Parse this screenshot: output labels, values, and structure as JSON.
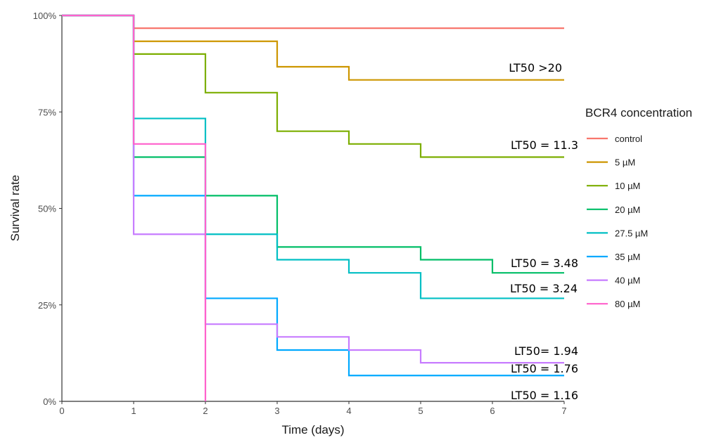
{
  "chart_data": {
    "type": "line",
    "step": true,
    "xlabel": "Time (days)",
    "ylabel": "Survival rate",
    "xlim": [
      0,
      7
    ],
    "ylim": [
      0,
      1
    ],
    "x_ticks": [
      "0",
      "1",
      "2",
      "3",
      "4",
      "5",
      "6",
      "7"
    ],
    "y_ticks": [
      {
        "value": 0,
        "label": "0%"
      },
      {
        "value": 0.25,
        "label": "25%"
      },
      {
        "value": 0.5,
        "label": "50%"
      },
      {
        "value": 0.75,
        "label": "75%"
      },
      {
        "value": 1,
        "label": "100%"
      }
    ],
    "grid": false,
    "legend": {
      "title": "BCR4 concentration",
      "position": "right"
    },
    "series": [
      {
        "name": "control",
        "color": "#F8766D",
        "x": [
          0,
          1,
          7
        ],
        "y": [
          1.0,
          0.967,
          0.967
        ]
      },
      {
        "name": "5 µM",
        "color": "#CD9600",
        "x": [
          0,
          1,
          3,
          4,
          7
        ],
        "y": [
          1.0,
          0.933,
          0.867,
          0.833,
          0.833
        ]
      },
      {
        "name": "10 µM",
        "color": "#7CAE00",
        "x": [
          0,
          1,
          2,
          3,
          4,
          5,
          7
        ],
        "y": [
          1.0,
          0.9,
          0.8,
          0.7,
          0.667,
          0.633,
          0.633
        ]
      },
      {
        "name": "20 µM",
        "color": "#00BE67",
        "x": [
          0,
          1,
          2,
          3,
          5,
          6,
          7
        ],
        "y": [
          1.0,
          0.633,
          0.533,
          0.4,
          0.367,
          0.333,
          0.333
        ]
      },
      {
        "name": "27.5 µM",
        "color": "#00BFC4",
        "x": [
          0,
          1,
          2,
          3,
          4,
          5,
          7
        ],
        "y": [
          1.0,
          0.733,
          0.433,
          0.367,
          0.333,
          0.267,
          0.267
        ]
      },
      {
        "name": "35 µM",
        "color": "#00A9FF",
        "x": [
          0,
          1,
          2,
          3,
          4,
          7
        ],
        "y": [
          1.0,
          0.533,
          0.267,
          0.133,
          0.067,
          0.067
        ]
      },
      {
        "name": "40 µM",
        "color": "#C77CFF",
        "x": [
          0,
          1,
          2,
          3,
          4,
          5,
          7
        ],
        "y": [
          1.0,
          0.433,
          0.2,
          0.167,
          0.133,
          0.1,
          0.1
        ]
      },
      {
        "name": "80 µM",
        "color": "#FF61CC",
        "x": [
          0,
          1,
          2,
          2
        ],
        "y": [
          1.0,
          0.667,
          0.0,
          0.0
        ]
      }
    ],
    "annotations": [
      {
        "text": "LT50 >20",
        "series": "5 µM"
      },
      {
        "text": "LT50 = 11.3",
        "series": "10 µM"
      },
      {
        "text": "LT50 = 3.48",
        "series": "20 µM"
      },
      {
        "text": "LT50 = 3.24",
        "series": "27.5 µM"
      },
      {
        "text": "LT50= 1.94",
        "series": "40 µM"
      },
      {
        "text": "LT50 = 1.76",
        "series": "35 µM"
      },
      {
        "text": "LT50 = 1.16",
        "series": "80 µM"
      }
    ]
  }
}
